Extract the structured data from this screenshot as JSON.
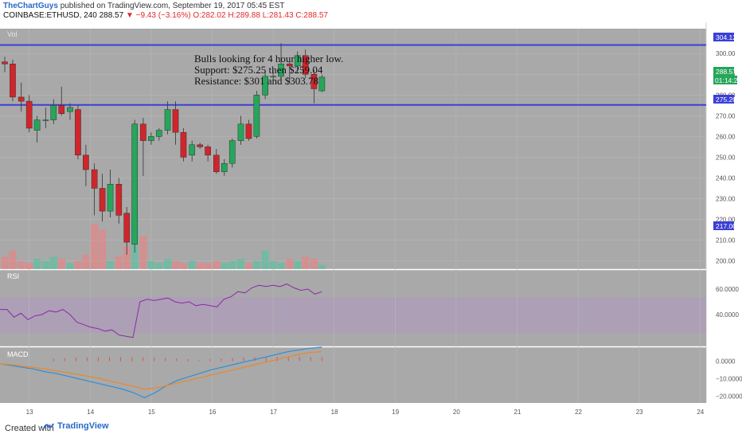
{
  "header": {
    "author": "TheChartGuys",
    "published_text": "published on TradingView.com, September 19, 2017 05:45 EST",
    "symbol": "COINBASE:ETHUSD, 240",
    "last": "288.57",
    "change": "▼ −9.43 (−3.16%)",
    "ohlc_o": "O:282.02",
    "ohlc_h": "H:289.88",
    "ohlc_l": "L:281.43",
    "ohlc_c": "C:288.57"
  },
  "annotation": {
    "line1": "Bulls looking for 4 hour higher low.",
    "line2": "Support: $275.25 then $259.04",
    "line3": "Resistance: $301 and $303.78"
  },
  "price_labels": {
    "resistance": "304.12",
    "last": "288.57",
    "countdown": "01:14:26",
    "support": "275.20",
    "low_marker": "217.00"
  },
  "panel_labels": {
    "vol": "Vol",
    "rsi": "RSI",
    "macd": "MACD"
  },
  "footer": {
    "created_with": "Created with",
    "brand": "TradingView"
  },
  "colors": {
    "up": "#26a65b",
    "down": "#d0252b",
    "hline": "#3b3fd6",
    "rsi_line": "#8a2ca8",
    "macd_line": "#2d8fd8",
    "signal_line": "#e8882a"
  },
  "chart_data": {
    "type": "candlestick",
    "symbol": "COINBASE:ETHUSD",
    "interval": "240",
    "y_axis": {
      "ticks": [
        200.0,
        210.0,
        220.0,
        230.0,
        240.0,
        250.0,
        260.0,
        270.0,
        280.0,
        290.0,
        300.0
      ],
      "range": [
        196,
        312
      ]
    },
    "x_axis": {
      "ticks": [
        "13",
        "14",
        "15",
        "16",
        "17",
        "18",
        "19",
        "20",
        "21",
        "22",
        "23",
        "24"
      ],
      "range": [
        12.6,
        24.1
      ]
    },
    "horizontal_lines": [
      304.12,
      275.2
    ],
    "candles": [
      {
        "t": 12.6,
        "o": 296.0,
        "h": 298.5,
        "l": 291.0,
        "c": 295.0
      },
      {
        "t": 12.73,
        "o": 295.0,
        "h": 297.0,
        "l": 277.0,
        "c": 279.0
      },
      {
        "t": 12.87,
        "o": 279.0,
        "h": 286.0,
        "l": 272.0,
        "c": 277.0
      },
      {
        "t": 13.0,
        "o": 277.0,
        "h": 280.0,
        "l": 262.0,
        "c": 264.0
      },
      {
        "t": 13.13,
        "o": 263.0,
        "h": 270.0,
        "l": 257.0,
        "c": 268.0
      },
      {
        "t": 13.27,
        "o": 268.0,
        "h": 274.0,
        "l": 264.0,
        "c": 268.0
      },
      {
        "t": 13.4,
        "o": 268.0,
        "h": 278.0,
        "l": 266.0,
        "c": 275.0
      },
      {
        "t": 13.53,
        "o": 275.0,
        "h": 284.0,
        "l": 270.0,
        "c": 271.0
      },
      {
        "t": 13.67,
        "o": 272.0,
        "h": 276.0,
        "l": 268.0,
        "c": 274.0
      },
      {
        "t": 13.8,
        "o": 273.0,
        "h": 275.0,
        "l": 249.0,
        "c": 251.0
      },
      {
        "t": 13.93,
        "o": 251.0,
        "h": 256.0,
        "l": 236.0,
        "c": 244.0
      },
      {
        "t": 14.07,
        "o": 244.0,
        "h": 247.0,
        "l": 222.0,
        "c": 235.0
      },
      {
        "t": 14.2,
        "o": 235.0,
        "h": 242.0,
        "l": 219.0,
        "c": 224.0
      },
      {
        "t": 14.33,
        "o": 224.0,
        "h": 244.0,
        "l": 221.0,
        "c": 237.0
      },
      {
        "t": 14.47,
        "o": 237.0,
        "h": 240.0,
        "l": 218.0,
        "c": 222.0
      },
      {
        "t": 14.6,
        "o": 223.0,
        "h": 226.0,
        "l": 203.0,
        "c": 209.0
      },
      {
        "t": 14.73,
        "o": 208.0,
        "h": 268.0,
        "l": 204.0,
        "c": 266.0
      },
      {
        "t": 14.87,
        "o": 266.0,
        "h": 269.0,
        "l": 241.0,
        "c": 258.0
      },
      {
        "t": 15.0,
        "o": 258.0,
        "h": 262.0,
        "l": 256.0,
        "c": 260.0
      },
      {
        "t": 15.13,
        "o": 260.0,
        "h": 264.0,
        "l": 258.0,
        "c": 263.0
      },
      {
        "t": 15.27,
        "o": 263.0,
        "h": 277.0,
        "l": 261.0,
        "c": 273.0
      },
      {
        "t": 15.4,
        "o": 273.0,
        "h": 277.0,
        "l": 256.0,
        "c": 262.0
      },
      {
        "t": 15.53,
        "o": 262.0,
        "h": 264.0,
        "l": 248.0,
        "c": 250.0
      },
      {
        "t": 15.67,
        "o": 251.0,
        "h": 258.0,
        "l": 248.0,
        "c": 256.0
      },
      {
        "t": 15.8,
        "o": 256.0,
        "h": 257.0,
        "l": 254.0,
        "c": 255.0
      },
      {
        "t": 15.93,
        "o": 255.0,
        "h": 256.0,
        "l": 248.0,
        "c": 251.0
      },
      {
        "t": 16.07,
        "o": 251.0,
        "h": 254.0,
        "l": 242.0,
        "c": 243.0
      },
      {
        "t": 16.2,
        "o": 243.0,
        "h": 249.0,
        "l": 241.0,
        "c": 247.0
      },
      {
        "t": 16.33,
        "o": 247.0,
        "h": 259.0,
        "l": 245.0,
        "c": 258.0
      },
      {
        "t": 16.47,
        "o": 258.0,
        "h": 270.0,
        "l": 256.0,
        "c": 266.0
      },
      {
        "t": 16.6,
        "o": 266.0,
        "h": 268.0,
        "l": 258.0,
        "c": 259.0
      },
      {
        "t": 16.73,
        "o": 260.0,
        "h": 282.0,
        "l": 259.0,
        "c": 280.0
      },
      {
        "t": 16.87,
        "o": 280.0,
        "h": 292.0,
        "l": 278.0,
        "c": 289.0
      },
      {
        "t": 17.0,
        "o": 289.0,
        "h": 292.0,
        "l": 285.0,
        "c": 289.0
      },
      {
        "t": 17.13,
        "o": 289.0,
        "h": 305.0,
        "l": 288.0,
        "c": 295.0
      },
      {
        "t": 17.27,
        "o": 295.0,
        "h": 296.0,
        "l": 286.0,
        "c": 294.0
      },
      {
        "t": 17.4,
        "o": 294.0,
        "h": 301.0,
        "l": 291.0,
        "c": 299.0
      },
      {
        "t": 17.53,
        "o": 299.0,
        "h": 302.0,
        "l": 288.0,
        "c": 290.0
      },
      {
        "t": 17.67,
        "o": 290.0,
        "h": 292.0,
        "l": 276.0,
        "c": 283.0
      },
      {
        "t": 17.8,
        "o": 282.0,
        "h": 289.9,
        "l": 281.4,
        "c": 288.6
      }
    ],
    "volume": [
      6,
      9,
      4,
      3,
      5,
      4,
      6,
      5,
      3,
      4,
      7,
      22,
      19,
      4,
      6,
      11,
      27,
      16,
      4,
      3,
      5,
      4,
      3,
      4,
      3,
      3,
      4,
      3,
      4,
      5,
      3,
      4,
      9,
      4,
      3,
      5,
      4,
      6,
      5,
      2
    ],
    "rsi": {
      "ticks": [
        40.0,
        60.0
      ],
      "values": [
        44,
        44,
        38,
        41,
        36,
        39,
        40,
        43,
        42,
        44,
        40,
        34,
        32,
        30,
        29,
        27,
        28,
        24,
        23,
        22,
        50,
        52,
        51,
        52,
        53,
        50,
        49,
        50,
        47,
        48,
        47,
        46,
        52,
        54,
        58,
        57,
        61,
        63,
        62,
        63,
        62,
        64,
        61,
        59,
        60,
        56,
        58
      ]
    },
    "macd": {
      "ticks": [
        0.0,
        -10.0,
        -20.0
      ],
      "macd": [
        -1.5,
        -2.5,
        -3.5,
        -4.5,
        -6,
        -7,
        -8.5,
        -10,
        -11.5,
        -13,
        -14.5,
        -16,
        -18,
        -21,
        -18,
        -14,
        -11,
        -9,
        -7,
        -5,
        -3.5,
        -2,
        -0.5,
        1,
        2.5,
        4,
        5.5,
        6.5,
        7.5,
        8
      ],
      "signal": [
        -1.5,
        -2,
        -2.8,
        -3.6,
        -4.5,
        -5.5,
        -6.5,
        -7.6,
        -8.8,
        -10,
        -11.5,
        -13,
        -14.5,
        -16,
        -15.5,
        -14,
        -12.5,
        -11,
        -9.5,
        -8,
        -6.5,
        -5,
        -3.5,
        -2,
        -0.5,
        1,
        2.5,
        4,
        5,
        5.5
      ],
      "histogram": [
        2,
        2.5,
        2.8,
        3,
        3.2,
        3.4,
        3.5,
        3.3,
        3.1,
        2.9,
        2.7,
        2.3,
        1.8,
        1.2,
        1.5,
        2.2,
        2.7,
        3,
        3.3,
        3.5,
        3.6,
        3.8,
        4,
        3.5,
        3.2
      ]
    }
  }
}
